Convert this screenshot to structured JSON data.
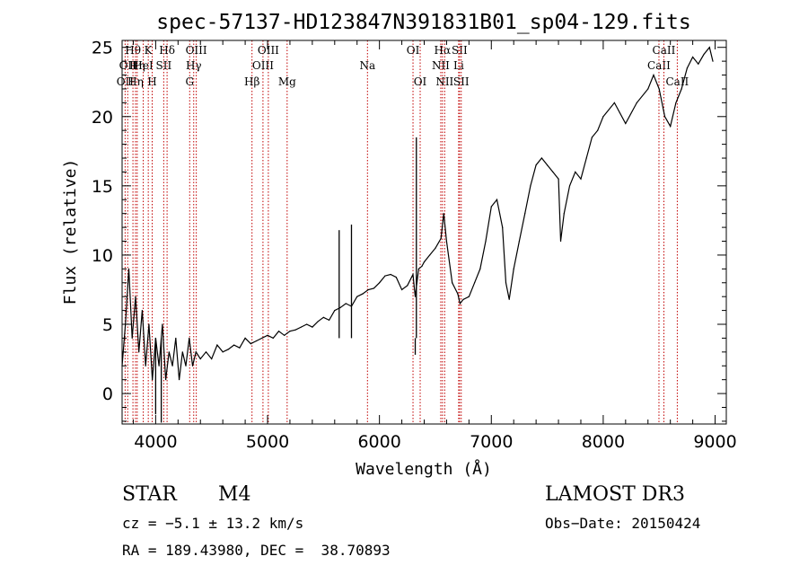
{
  "chart_data": {
    "type": "line",
    "title": "spec-57137-HD123847N391831B01_sp04-129.fits",
    "xlabel": "Wavelength (Å)",
    "ylabel": "Flux (relative)",
    "xlim": [
      3700,
      9100
    ],
    "ylim": [
      -2.2,
      25.5
    ],
    "xticks": [
      4000,
      5000,
      6000,
      7000,
      8000,
      9000
    ],
    "yticks": [
      0,
      5,
      10,
      15,
      20,
      25
    ],
    "series": [
      {
        "name": "flux",
        "x": [
          3700,
          3730,
          3760,
          3790,
          3820,
          3850,
          3880,
          3910,
          3940,
          3970,
          4000,
          4030,
          4060,
          4090,
          4120,
          4150,
          4180,
          4210,
          4240,
          4270,
          4300,
          4330,
          4360,
          4400,
          4450,
          4500,
          4550,
          4600,
          4650,
          4700,
          4750,
          4800,
          4850,
          4900,
          4950,
          5000,
          5050,
          5100,
          5150,
          5200,
          5250,
          5300,
          5350,
          5400,
          5450,
          5500,
          5550,
          5600,
          5650,
          5700,
          5750,
          5800,
          5850,
          5900,
          5950,
          6000,
          6050,
          6100,
          6150,
          6200,
          6250,
          6300,
          6320,
          6350,
          6380,
          6400,
          6450,
          6500,
          6550,
          6575,
          6600,
          6650,
          6700,
          6720,
          6750,
          6800,
          6850,
          6900,
          6950,
          7000,
          7050,
          7100,
          7130,
          7160,
          7200,
          7250,
          7300,
          7350,
          7400,
          7450,
          7500,
          7550,
          7600,
          7620,
          7650,
          7700,
          7750,
          7800,
          7850,
          7900,
          7950,
          8000,
          8100,
          8200,
          8300,
          8400,
          8450,
          8500,
          8550,
          8600,
          8650,
          8700,
          8750,
          8800,
          8850,
          8900,
          8950,
          8980
        ],
        "y": [
          2,
          5,
          9,
          4,
          7,
          3,
          6,
          2,
          5,
          1,
          4,
          2,
          5,
          1,
          3,
          2,
          4,
          1,
          3,
          2,
          4,
          2,
          3,
          2.5,
          3,
          2.5,
          3.5,
          3,
          3.2,
          3.5,
          3.3,
          4,
          3.6,
          3.8,
          4,
          4.2,
          4,
          4.5,
          4.2,
          4.5,
          4.6,
          4.8,
          5,
          4.8,
          5.2,
          5.5,
          5.3,
          6,
          6.2,
          6.5,
          6.3,
          7,
          7.2,
          7.5,
          7.6,
          8,
          8.5,
          8.6,
          8.4,
          7.5,
          7.8,
          8.6,
          7,
          9,
          9.2,
          9.5,
          10,
          10.5,
          11.2,
          13,
          11,
          8,
          7.2,
          6.5,
          6.8,
          7,
          8,
          9,
          11,
          13.5,
          14,
          12,
          8,
          6.8,
          9,
          11,
          13,
          15,
          16.5,
          17,
          16.5,
          16,
          15.5,
          11,
          13,
          15,
          16,
          15.5,
          17,
          18.5,
          19,
          20,
          21,
          19.5,
          21,
          22,
          23,
          22,
          20,
          19.3,
          21,
          22,
          23.5,
          24.3,
          23.8,
          24.5,
          25,
          24
        ]
      }
    ],
    "spikes": [
      {
        "x": 4000,
        "y": -1.5
      },
      {
        "x": 4050,
        "y": -2.1
      },
      {
        "x": 5640,
        "y": 11.8
      },
      {
        "x": 5750,
        "y": 12.2
      },
      {
        "x": 6330,
        "y": 18.5
      },
      {
        "x": 6320,
        "y": 2.8
      }
    ],
    "line_markers": [
      {
        "x": 3727,
        "row": 2,
        "label": "OII"
      },
      {
        "x": 3750,
        "row": 1,
        "label": "OII"
      },
      {
        "x": 3797,
        "row": 0,
        "label": "Hθ"
      },
      {
        "x": 3820,
        "row": 2,
        "label": "Hη"
      },
      {
        "x": 3835,
        "row": 1,
        "label": "Hη"
      },
      {
        "x": 3889,
        "row": 1,
        "label": "HeI"
      },
      {
        "x": 3934,
        "row": 0,
        "label": "K"
      },
      {
        "x": 3969,
        "row": 2,
        "label": "H"
      },
      {
        "x": 4072,
        "row": 1,
        "label": "SII"
      },
      {
        "x": 4102,
        "row": 0,
        "label": "Hδ"
      },
      {
        "x": 4304,
        "row": 2,
        "label": "G"
      },
      {
        "x": 4340,
        "row": 1,
        "label": "Hγ"
      },
      {
        "x": 4363,
        "row": 0,
        "label": "OIII"
      },
      {
        "x": 4861,
        "row": 2,
        "label": "Hβ"
      },
      {
        "x": 4959,
        "row": 1,
        "label": "OIII"
      },
      {
        "x": 5007,
        "row": 0,
        "label": "OIII"
      },
      {
        "x": 5175,
        "row": 2,
        "label": "Mg"
      },
      {
        "x": 5893,
        "row": 1,
        "label": "Na"
      },
      {
        "x": 6300,
        "row": 0,
        "label": "OI"
      },
      {
        "x": 6364,
        "row": 2,
        "label": "OI"
      },
      {
        "x": 6548,
        "row": 1,
        "label": "NII"
      },
      {
        "x": 6563,
        "row": 0,
        "label": "Hα"
      },
      {
        "x": 6583,
        "row": 2,
        "label": "NII"
      },
      {
        "x": 6708,
        "row": 1,
        "label": "Li"
      },
      {
        "x": 6716,
        "row": 0,
        "label": "SII"
      },
      {
        "x": 6731,
        "row": 2,
        "label": "SII"
      },
      {
        "x": 8498,
        "row": 1,
        "label": "CaII"
      },
      {
        "x": 8542,
        "row": 0,
        "label": "CaII"
      },
      {
        "x": 8662,
        "row": 2,
        "label": "CaII"
      }
    ]
  },
  "info": {
    "class": "STAR",
    "subclass": "M4",
    "survey": "LAMOST DR3",
    "cz": "cz = −5.1 ± 13.2 km/s",
    "obs_date": "Obs−Date: 20150424",
    "coords": "RA = 189.43980, DEC =  38.70893"
  }
}
